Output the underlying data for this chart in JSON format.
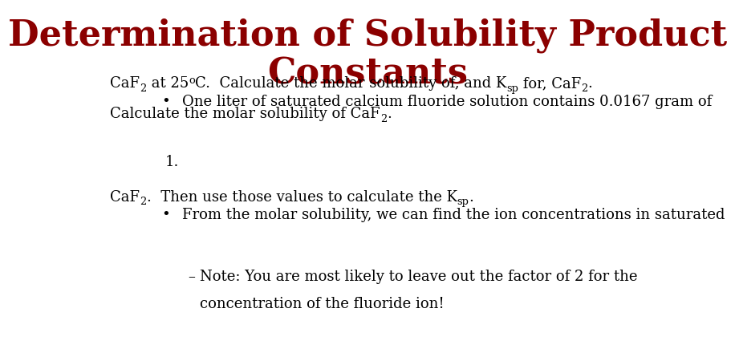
{
  "title_line1": "Determination of Solubility Product",
  "title_line2": "Constants",
  "title_color": "#8B0000",
  "background_color": "#ffffff",
  "title_fontsize": 32,
  "body_fontsize": 13,
  "font_family": "serif",
  "body_color": "#000000",
  "bullet1_line1": "One liter of saturated calcium fluoride solution contains 0.0167 gram of",
  "bullet2_line1": "From the molar solubility, we can find the ion concentrations in saturated",
  "note_line1": "Note: You are most likely to leave out the factor of 2 for the",
  "note_line2": "concentration of the fluoride ion!"
}
